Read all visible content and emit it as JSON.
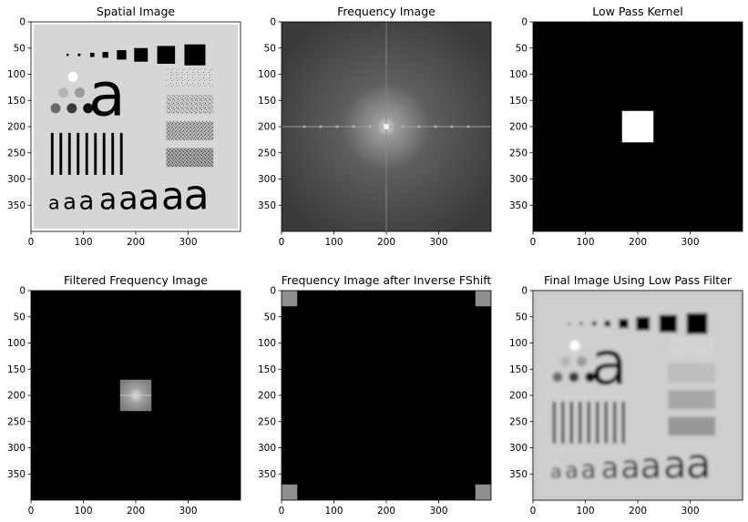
{
  "figure": {
    "panels": [
      {
        "title": "Spatial Image",
        "kind": "spatial"
      },
      {
        "title": "Frequency Image",
        "kind": "frequency"
      },
      {
        "title": "Low Pass Kernel",
        "kind": "kernel"
      },
      {
        "title": "Filtered Frequency Image",
        "kind": "filtered"
      },
      {
        "title": "Frequency Image after Inverse FShift",
        "kind": "ishift"
      },
      {
        "title": "Final Image Using Low Pass Filter",
        "kind": "final"
      }
    ],
    "image_size": 400,
    "x_ticks": [
      "0",
      "100",
      "200",
      "300"
    ],
    "y_ticks": [
      "0",
      "50",
      "100",
      "150",
      "200",
      "250",
      "300",
      "350"
    ],
    "test_pattern_letter": "a"
  }
}
